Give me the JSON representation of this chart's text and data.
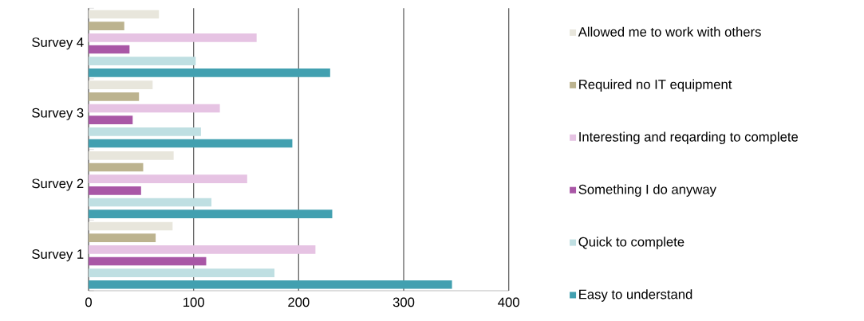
{
  "chart_data": {
    "type": "bar",
    "orientation": "horizontal",
    "categories": [
      "Survey 4",
      "Survey 3",
      "Survey 2",
      "Survey 1"
    ],
    "series": [
      {
        "name": "Allowed me to work with others",
        "color": "#e8e6dc",
        "values": [
          67,
          61,
          81,
          80
        ]
      },
      {
        "name": "Required no IT equipment",
        "color": "#bcb38f",
        "values": [
          34,
          48,
          52,
          64
        ]
      },
      {
        "name": "Interesting and reqarding to complete",
        "color": "#e6c3e3",
        "values": [
          160,
          125,
          151,
          216
        ]
      },
      {
        "name": "Something I do anyway",
        "color": "#a957a6",
        "values": [
          39,
          42,
          50,
          112
        ]
      },
      {
        "name": "Quick to complete",
        "color": "#bfdfe2",
        "values": [
          102,
          107,
          117,
          177
        ]
      },
      {
        "name": "Easy to understand",
        "color": "#42a0b0",
        "values": [
          230,
          194,
          232,
          346
        ]
      }
    ],
    "xlim": [
      0,
      400
    ],
    "xticks": [
      0,
      100,
      200,
      300,
      400
    ],
    "grid": "x",
    "legend": "right"
  }
}
